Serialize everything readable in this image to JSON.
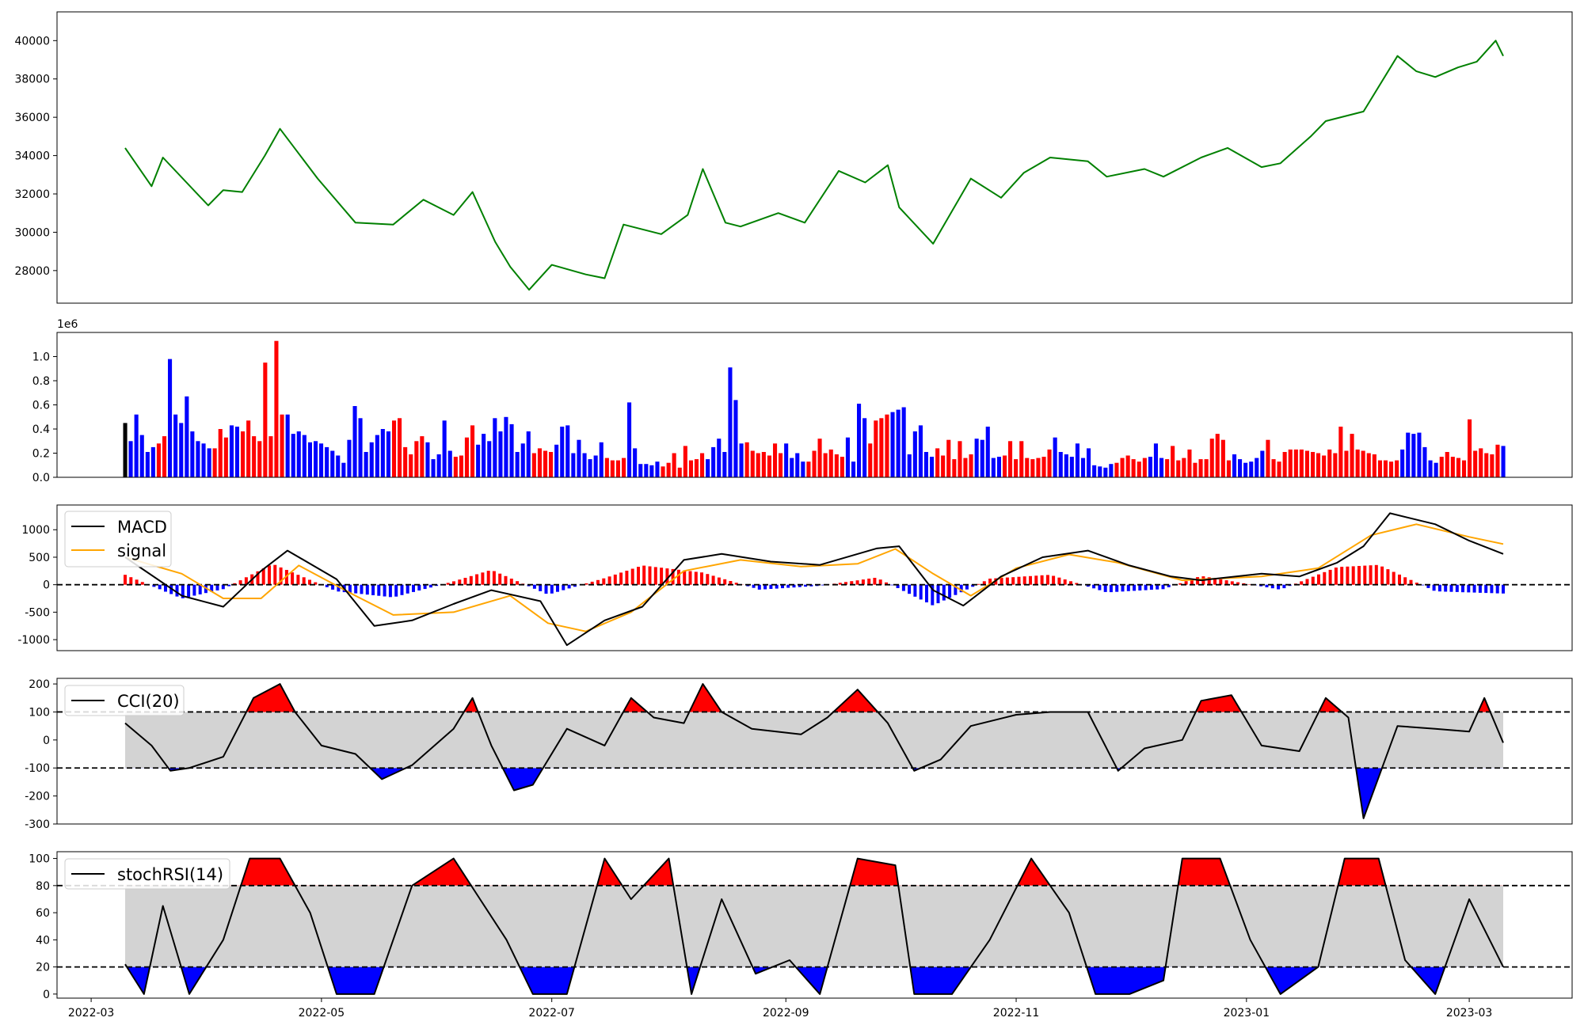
{
  "colors": {
    "price_line": "#008000",
    "up": "#ff0000",
    "down": "#0000ff",
    "flat": "#000000",
    "macd_line": "#000000",
    "signal_line": "#ffa500",
    "band_fill": "#d3d3d3",
    "overbought_fill": "#ff0000",
    "oversold_fill": "#0000ff"
  },
  "x_axis": {
    "start": "2022-03-10",
    "end": "2023-03-10",
    "tick_labels": [
      "2022-03",
      "2022-05",
      "2022-07",
      "2022-09",
      "2022-11",
      "2023-01",
      "2023-03"
    ]
  },
  "chart_data": [
    {
      "type": "line",
      "panel": "price",
      "ylim": [
        26300,
        41500
      ],
      "y_ticks": [
        28000,
        30000,
        32000,
        34000,
        36000,
        38000,
        40000
      ],
      "series": [
        {
          "x": [
            "2022-03-10",
            "2022-03-17",
            "2022-03-20",
            "2022-04-01",
            "2022-04-05",
            "2022-04-10",
            "2022-04-16",
            "2022-04-20",
            "2022-04-30",
            "2022-05-10",
            "2022-05-20",
            "2022-05-28",
            "2022-06-05",
            "2022-06-10",
            "2022-06-16",
            "2022-06-20",
            "2022-06-25",
            "2022-07-01",
            "2022-07-10",
            "2022-07-15",
            "2022-07-20",
            "2022-07-30",
            "2022-08-06",
            "2022-08-10",
            "2022-08-16",
            "2022-08-20",
            "2022-08-30",
            "2022-09-06",
            "2022-09-15",
            "2022-09-22",
            "2022-09-28",
            "2022-10-01",
            "2022-10-10",
            "2022-10-15",
            "2022-10-20",
            "2022-10-28",
            "2022-11-03",
            "2022-11-10",
            "2022-11-20",
            "2022-11-25",
            "2022-12-05",
            "2022-12-10",
            "2022-12-20",
            "2022-12-27",
            "2023-01-05",
            "2023-01-10",
            "2023-01-18",
            "2023-01-22",
            "2023-02-01",
            "2023-02-10",
            "2023-02-15",
            "2023-02-20",
            "2023-02-26",
            "2023-03-03",
            "2023-03-08",
            "2023-03-10"
          ],
          "values": [
            34400,
            32400,
            33900,
            31400,
            32200,
            32100,
            34000,
            35400,
            32800,
            30500,
            30400,
            31700,
            30900,
            32100,
            29500,
            28200,
            27000,
            28300,
            27800,
            27600,
            30400,
            29900,
            30900,
            33300,
            30500,
            30300,
            31000,
            30500,
            33200,
            32600,
            33500,
            31300,
            29400,
            31100,
            32800,
            31800,
            33100,
            33900,
            33700,
            32900,
            33300,
            32900,
            33900,
            34400,
            33400,
            33600,
            35000,
            35800,
            36300,
            39200,
            38400,
            38100,
            38600,
            38900,
            40000,
            39200
          ]
        }
      ]
    },
    {
      "type": "bar",
      "panel": "volume",
      "offset_label": "1e6",
      "ylim": [
        0,
        1.2
      ],
      "y_ticks": [
        0.0,
        0.2,
        0.4,
        0.6,
        0.8,
        1.0
      ],
      "y_tick_labels": [
        "0.0",
        "0.2",
        "0.4",
        "0.6",
        "0.8",
        "1.0"
      ],
      "values": [
        0.45,
        0.3,
        0.52,
        0.35,
        0.21,
        0.25,
        0.28,
        0.34,
        0.98,
        0.52,
        0.45,
        0.67,
        0.38,
        0.3,
        0.28,
        0.24,
        0.24,
        0.4,
        0.33,
        0.43,
        0.42,
        0.38,
        0.47,
        0.34,
        0.3,
        0.95,
        0.34,
        1.13,
        0.52,
        0.52,
        0.36,
        0.38,
        0.35,
        0.29,
        0.3,
        0.28,
        0.25,
        0.22,
        0.18,
        0.12,
        0.31,
        0.59,
        0.49,
        0.21,
        0.29,
        0.35,
        0.4,
        0.38,
        0.47,
        0.49,
        0.25,
        0.19,
        0.3,
        0.34,
        0.29,
        0.15,
        0.19,
        0.47,
        0.22,
        0.17,
        0.18,
        0.33,
        0.43,
        0.27,
        0.36,
        0.3,
        0.49,
        0.38,
        0.5,
        0.44,
        0.21,
        0.28,
        0.38,
        0.2,
        0.24,
        0.22,
        0.21,
        0.27,
        0.42,
        0.43,
        0.2,
        0.31,
        0.2,
        0.15,
        0.18,
        0.29,
        0.16,
        0.14,
        0.14,
        0.16,
        0.62,
        0.24,
        0.11,
        0.11,
        0.1,
        0.13,
        0.09,
        0.12,
        0.2,
        0.08,
        0.26,
        0.14,
        0.15,
        0.2,
        0.15,
        0.25,
        0.32,
        0.21,
        0.91,
        0.64,
        0.28,
        0.29,
        0.22,
        0.2,
        0.21,
        0.18,
        0.28,
        0.2,
        0.28,
        0.16,
        0.2,
        0.13,
        0.13,
        0.22,
        0.32,
        0.2,
        0.23,
        0.19,
        0.17,
        0.33,
        0.13,
        0.61,
        0.49,
        0.28,
        0.47,
        0.49,
        0.52,
        0.54,
        0.56,
        0.58,
        0.19,
        0.38,
        0.43,
        0.21,
        0.17,
        0.24,
        0.18,
        0.31,
        0.15,
        0.3,
        0.16,
        0.19,
        0.32,
        0.31,
        0.42,
        0.16,
        0.17,
        0.18,
        0.3,
        0.15,
        0.3,
        0.16,
        0.15,
        0.16,
        0.17,
        0.23,
        0.33,
        0.21,
        0.19,
        0.17,
        0.28,
        0.16,
        0.24,
        0.1,
        0.09,
        0.08,
        0.11,
        0.12,
        0.16,
        0.18,
        0.15,
        0.13,
        0.16,
        0.17,
        0.28,
        0.16,
        0.15,
        0.26,
        0.14,
        0.16,
        0.23,
        0.12,
        0.15,
        0.15,
        0.32,
        0.36,
        0.31,
        0.14,
        0.19,
        0.15,
        0.12,
        0.13,
        0.16,
        0.22,
        0.31,
        0.15,
        0.13,
        0.21,
        0.23,
        0.23,
        0.23,
        0.22,
        0.21,
        0.2,
        0.18,
        0.23,
        0.2,
        0.42,
        0.22,
        0.36,
        0.23,
        0.22,
        0.2,
        0.19,
        0.14,
        0.14,
        0.13,
        0.14,
        0.23,
        0.37,
        0.36,
        0.37,
        0.25,
        0.14,
        0.12,
        0.17,
        0.21,
        0.17,
        0.16,
        0.14,
        0.48,
        0.22,
        0.24,
        0.2,
        0.19,
        0.27,
        0.26
      ]
    },
    {
      "type": "line",
      "panel": "macd",
      "ylim": [
        -1200,
        1450
      ],
      "y_ticks": [
        -1000,
        -500,
        0,
        500,
        1000
      ],
      "legend": "upper-left",
      "reference_line": 0,
      "series": [
        {
          "name": "MACD",
          "x": [
            "2022-03-10",
            "2022-03-25",
            "2022-04-05",
            "2022-04-15",
            "2022-04-22",
            "2022-05-05",
            "2022-05-15",
            "2022-05-25",
            "2022-06-05",
            "2022-06-15",
            "2022-06-28",
            "2022-07-05",
            "2022-07-15",
            "2022-07-25",
            "2022-08-05",
            "2022-08-15",
            "2022-08-28",
            "2022-09-10",
            "2022-09-25",
            "2022-10-01",
            "2022-10-10",
            "2022-10-18",
            "2022-10-28",
            "2022-11-08",
            "2022-11-20",
            "2022-12-01",
            "2022-12-12",
            "2022-12-20",
            "2023-01-05",
            "2023-01-15",
            "2023-01-25",
            "2023-02-01",
            "2023-02-08",
            "2023-02-20",
            "2023-03-01",
            "2023-03-10"
          ],
          "values": [
            500,
            -200,
            -400,
            250,
            620,
            100,
            -750,
            -650,
            -350,
            -100,
            -300,
            -1100,
            -650,
            -400,
            450,
            560,
            420,
            360,
            660,
            700,
            -100,
            -380,
            150,
            500,
            620,
            350,
            150,
            80,
            200,
            150,
            400,
            700,
            1300,
            1100,
            800,
            560
          ]
        },
        {
          "name": "signal",
          "x": [
            "2022-03-10",
            "2022-03-25",
            "2022-04-05",
            "2022-04-15",
            "2022-04-25",
            "2022-05-10",
            "2022-05-20",
            "2022-06-05",
            "2022-06-20",
            "2022-06-30",
            "2022-07-10",
            "2022-07-22",
            "2022-08-05",
            "2022-08-20",
            "2022-09-05",
            "2022-09-20",
            "2022-09-30",
            "2022-10-10",
            "2022-10-20",
            "2022-11-01",
            "2022-11-15",
            "2022-11-28",
            "2022-12-15",
            "2023-01-05",
            "2023-01-20",
            "2023-02-03",
            "2023-02-15",
            "2023-03-01",
            "2023-03-10"
          ],
          "values": [
            500,
            200,
            -250,
            -250,
            350,
            -200,
            -550,
            -500,
            -200,
            -700,
            -850,
            -500,
            250,
            450,
            330,
            380,
            650,
            200,
            -200,
            300,
            550,
            400,
            80,
            150,
            300,
            900,
            1100,
            870,
            740
          ]
        }
      ],
      "histogram": {
        "x": [
          "2022-03-10",
          "2022-03-25",
          "2022-04-05",
          "2022-04-18",
          "2022-05-05",
          "2022-05-20",
          "2022-06-05",
          "2022-06-15",
          "2022-06-30",
          "2022-07-15",
          "2022-07-25",
          "2022-08-10",
          "2022-08-25",
          "2022-09-10",
          "2022-09-25",
          "2022-10-10",
          "2022-10-25",
          "2022-11-10",
          "2022-11-25",
          "2022-12-10",
          "2022-12-20",
          "2023-01-10",
          "2023-01-25",
          "2023-02-05",
          "2023-02-20",
          "2023-03-10"
        ],
        "values": [
          180,
          -250,
          -80,
          380,
          -120,
          -230,
          60,
          270,
          -180,
          120,
          350,
          220,
          -90,
          -20,
          130,
          -380,
          110,
          180,
          -140,
          -80,
          160,
          -90,
          320,
          360,
          -120,
          -160
        ]
      }
    },
    {
      "type": "line",
      "panel": "cci",
      "ylim": [
        -300,
        220
      ],
      "y_ticks": [
        -300,
        -200,
        -100,
        0,
        100,
        200
      ],
      "legend": "upper-left",
      "band": [
        -100,
        100
      ],
      "series": [
        {
          "name": "CCI(20)",
          "x": [
            "2022-03-10",
            "2022-03-17",
            "2022-03-22",
            "2022-03-27",
            "2022-04-05",
            "2022-04-13",
            "2022-04-20",
            "2022-04-24",
            "2022-05-01",
            "2022-05-10",
            "2022-05-17",
            "2022-05-25",
            "2022-06-05",
            "2022-06-10",
            "2022-06-15",
            "2022-06-21",
            "2022-06-26",
            "2022-07-05",
            "2022-07-15",
            "2022-07-22",
            "2022-07-28",
            "2022-08-05",
            "2022-08-10",
            "2022-08-15",
            "2022-08-23",
            "2022-09-05",
            "2022-09-12",
            "2022-09-20",
            "2022-09-28",
            "2022-10-05",
            "2022-10-12",
            "2022-10-20",
            "2022-11-01",
            "2022-11-10",
            "2022-11-20",
            "2022-11-28",
            "2022-12-05",
            "2022-12-15",
            "2022-12-20",
            "2022-12-28",
            "2023-01-05",
            "2023-01-15",
            "2023-01-22",
            "2023-01-28",
            "2023-02-01",
            "2023-02-10",
            "2023-02-20",
            "2023-03-01",
            "2023-03-05",
            "2023-03-10"
          ],
          "values": [
            60,
            -20,
            -110,
            -100,
            -60,
            150,
            200,
            100,
            -20,
            -50,
            -140,
            -90,
            40,
            150,
            -20,
            -180,
            -160,
            40,
            -20,
            150,
            80,
            60,
            200,
            100,
            40,
            20,
            80,
            180,
            60,
            -110,
            -70,
            50,
            90,
            100,
            100,
            -110,
            -30,
            0,
            140,
            160,
            -20,
            -40,
            150,
            80,
            -280,
            50,
            40,
            30,
            150,
            -10
          ]
        }
      ]
    },
    {
      "type": "line",
      "panel": "stoch_rsi",
      "ylim": [
        -3,
        105
      ],
      "y_ticks": [
        0,
        20,
        40,
        60,
        80,
        100
      ],
      "legend": "upper-left",
      "band": [
        20,
        80
      ],
      "series": [
        {
          "name": "stochRSI(14)",
          "x": [
            "2022-03-10",
            "2022-03-15",
            "2022-03-20",
            "2022-03-27",
            "2022-04-05",
            "2022-04-12",
            "2022-04-20",
            "2022-04-28",
            "2022-05-05",
            "2022-05-15",
            "2022-05-25",
            "2022-06-05",
            "2022-06-12",
            "2022-06-19",
            "2022-06-26",
            "2022-07-05",
            "2022-07-15",
            "2022-07-22",
            "2022-08-01",
            "2022-08-07",
            "2022-08-15",
            "2022-08-24",
            "2022-09-02",
            "2022-09-10",
            "2022-09-20",
            "2022-09-30",
            "2022-10-05",
            "2022-10-15",
            "2022-10-25",
            "2022-11-05",
            "2022-11-15",
            "2022-11-22",
            "2022-12-01",
            "2022-12-10",
            "2022-12-15",
            "2022-12-25",
            "2023-01-02",
            "2023-01-10",
            "2023-01-20",
            "2023-01-27",
            "2023-02-05",
            "2023-02-12",
            "2023-02-20",
            "2023-03-01",
            "2023-03-10"
          ],
          "values": [
            22,
            0,
            65,
            0,
            40,
            100,
            100,
            60,
            0,
            0,
            80,
            100,
            70,
            40,
            0,
            0,
            100,
            70,
            100,
            0,
            70,
            15,
            25,
            0,
            100,
            95,
            0,
            0,
            40,
            100,
            60,
            0,
            0,
            10,
            100,
            100,
            40,
            0,
            20,
            100,
            100,
            25,
            0,
            70,
            20
          ]
        }
      ]
    }
  ]
}
